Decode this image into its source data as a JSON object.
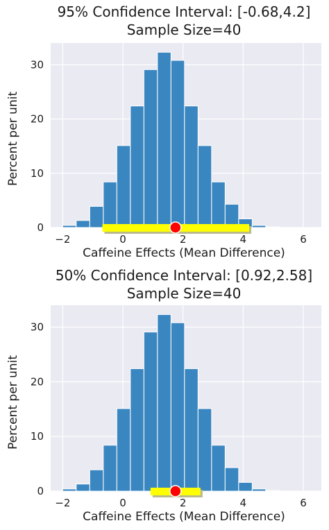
{
  "chart_data": [
    {
      "type": "bar",
      "title": "95% Confidence Interval: [-0.68,4.2]",
      "subtitle": "Sample Size=40",
      "xlabel": "Caffeine Effects (Mean Difference)",
      "ylabel": "Percent per unit",
      "xlim": [
        -2.4,
        6.6
      ],
      "ylim": [
        0,
        34
      ],
      "xticks": [
        -2,
        0,
        2,
        4,
        6
      ],
      "yticks": [
        0,
        10,
        20,
        30
      ],
      "bin_edges": [
        -2.0,
        -1.55,
        -1.1,
        -0.65,
        -0.2,
        0.25,
        0.7,
        1.15,
        1.6,
        2.05,
        2.5,
        2.95,
        3.4,
        3.85,
        4.3,
        4.75,
        5.2,
        5.65,
        6.1
      ],
      "values": [
        0.4,
        1.3,
        3.9,
        8.4,
        15.1,
        22.4,
        29.1,
        32.3,
        30.8,
        22.4,
        15.1,
        8.4,
        4.3,
        1.6,
        0.4,
        0.1,
        0.0,
        0.0
      ],
      "interval": [
        -0.68,
        4.2
      ],
      "point_estimate": 1.75,
      "grid": true,
      "colors": {
        "bar": "#3a86c0",
        "bar_edge": "#ffffff",
        "background": "#eaeaf2",
        "grid": "#ffffff",
        "interval": "#ffff00",
        "interval_shadow": "#b9b98a",
        "point": "#ff0000"
      }
    },
    {
      "type": "bar",
      "title": "50% Confidence Interval: [0.92,2.58]",
      "subtitle": "Sample Size=40",
      "xlabel": "Caffeine Effects (Mean Difference)",
      "ylabel": "Percent per unit",
      "xlim": [
        -2.4,
        6.6
      ],
      "ylim": [
        0,
        34
      ],
      "xticks": [
        -2,
        0,
        2,
        4,
        6
      ],
      "yticks": [
        0,
        10,
        20,
        30
      ],
      "bin_edges": [
        -2.0,
        -1.55,
        -1.1,
        -0.65,
        -0.2,
        0.25,
        0.7,
        1.15,
        1.6,
        2.05,
        2.5,
        2.95,
        3.4,
        3.85,
        4.3,
        4.75,
        5.2,
        5.65,
        6.1
      ],
      "values": [
        0.4,
        1.3,
        3.9,
        8.4,
        15.1,
        22.4,
        29.1,
        32.3,
        30.8,
        22.4,
        15.1,
        8.4,
        4.3,
        1.6,
        0.4,
        0.1,
        0.0,
        0.0
      ],
      "interval": [
        0.92,
        2.58
      ],
      "point_estimate": 1.75,
      "grid": true,
      "colors": {
        "bar": "#3a86c0",
        "bar_edge": "#ffffff",
        "background": "#eaeaf2",
        "grid": "#ffffff",
        "interval": "#ffff00",
        "interval_shadow": "#b9b98a",
        "point": "#ff0000"
      }
    }
  ]
}
